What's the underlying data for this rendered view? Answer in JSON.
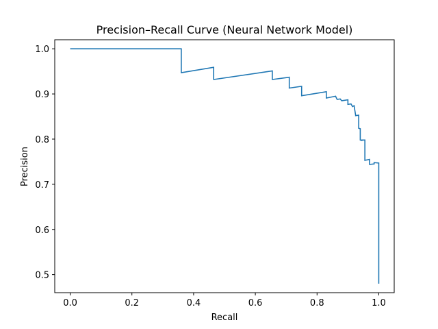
{
  "chart_data": {
    "type": "line",
    "title": "Precision–Recall Curve (Neural Network Model)",
    "xlabel": "Recall",
    "ylabel": "Precision",
    "xlim": [
      -0.05,
      1.05
    ],
    "ylim": [
      0.46,
      1.02
    ],
    "xticks": [
      0.0,
      0.2,
      0.4,
      0.6,
      0.8,
      1.0
    ],
    "xtick_labels": [
      "0.0",
      "0.2",
      "0.4",
      "0.6",
      "0.8",
      "1.0"
    ],
    "yticks": [
      0.5,
      0.6,
      0.7,
      0.8,
      0.9,
      1.0
    ],
    "ytick_labels": [
      "0.5",
      "0.6",
      "0.7",
      "0.8",
      "0.9",
      "1.0"
    ],
    "grid": false,
    "line_color": "#1f77b4",
    "series": [
      {
        "step": true,
        "x": [
          0.0,
          0.36,
          0.36,
          0.465,
          0.465,
          0.655,
          0.655,
          0.71,
          0.71,
          0.75,
          0.75,
          0.83,
          0.83,
          0.86,
          0.865,
          0.875,
          0.88,
          0.9,
          0.9,
          0.91,
          0.915,
          0.92,
          0.925,
          0.925,
          0.935,
          0.935,
          0.94,
          0.94,
          0.945,
          0.945,
          0.955,
          0.955,
          0.97,
          0.97,
          0.985,
          0.985,
          1.0,
          1.0
        ],
        "y": [
          1.0,
          1.0,
          0.947,
          0.959,
          0.932,
          0.951,
          0.932,
          0.937,
          0.913,
          0.917,
          0.896,
          0.905,
          0.891,
          0.895,
          0.888,
          0.889,
          0.885,
          0.887,
          0.877,
          0.878,
          0.872,
          0.874,
          0.853,
          0.852,
          0.853,
          0.824,
          0.823,
          0.798,
          0.797,
          0.798,
          0.798,
          0.753,
          0.755,
          0.744,
          0.745,
          0.748,
          0.747,
          0.48
        ]
      }
    ]
  }
}
